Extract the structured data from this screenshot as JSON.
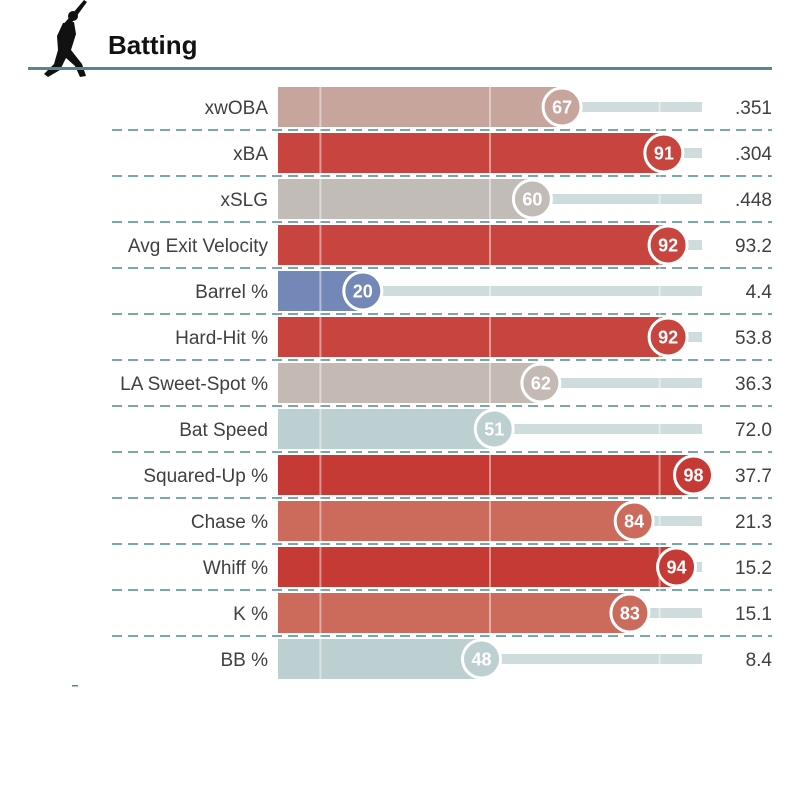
{
  "title": "Batting",
  "icon": "batter-silhouette-icon",
  "colors": {
    "header_rule": "#4e8a8f",
    "track": "#cfdcdd",
    "separator": "#4e8a8f",
    "gridline": "#ffffff"
  },
  "chart_data": {
    "type": "bar",
    "title": "Batting",
    "categories": [
      "xwOBA",
      "xBA",
      "xSLG",
      "Avg Exit Velocity",
      "Barrel %",
      "Hard-Hit %",
      "LA Sweet-Spot %",
      "Bat Speed",
      "Squared-Up %",
      "Chase %",
      "Whiff %",
      "K %",
      "BB %"
    ],
    "percentiles": [
      67,
      91,
      60,
      92,
      20,
      92,
      62,
      51,
      98,
      84,
      94,
      83,
      48
    ],
    "values": [
      ".351",
      ".304",
      ".448",
      "93.2",
      "4.4",
      "53.8",
      "36.3",
      "72.0",
      "37.7",
      "21.3",
      "15.2",
      "15.1",
      "8.4"
    ],
    "bar_colors": [
      "#c7a59d",
      "#c8453f",
      "#c1bcb8",
      "#c8453f",
      "#7488b8",
      "#c8453f",
      "#c5b9b4",
      "#bccfd1",
      "#c63a36",
      "#cc6a5b",
      "#c63a36",
      "#cc6a5b",
      "#bccfd1"
    ],
    "xlim": [
      0,
      100
    ],
    "gridlines": [
      10,
      50,
      90
    ],
    "xlabel": "",
    "ylabel": ""
  }
}
